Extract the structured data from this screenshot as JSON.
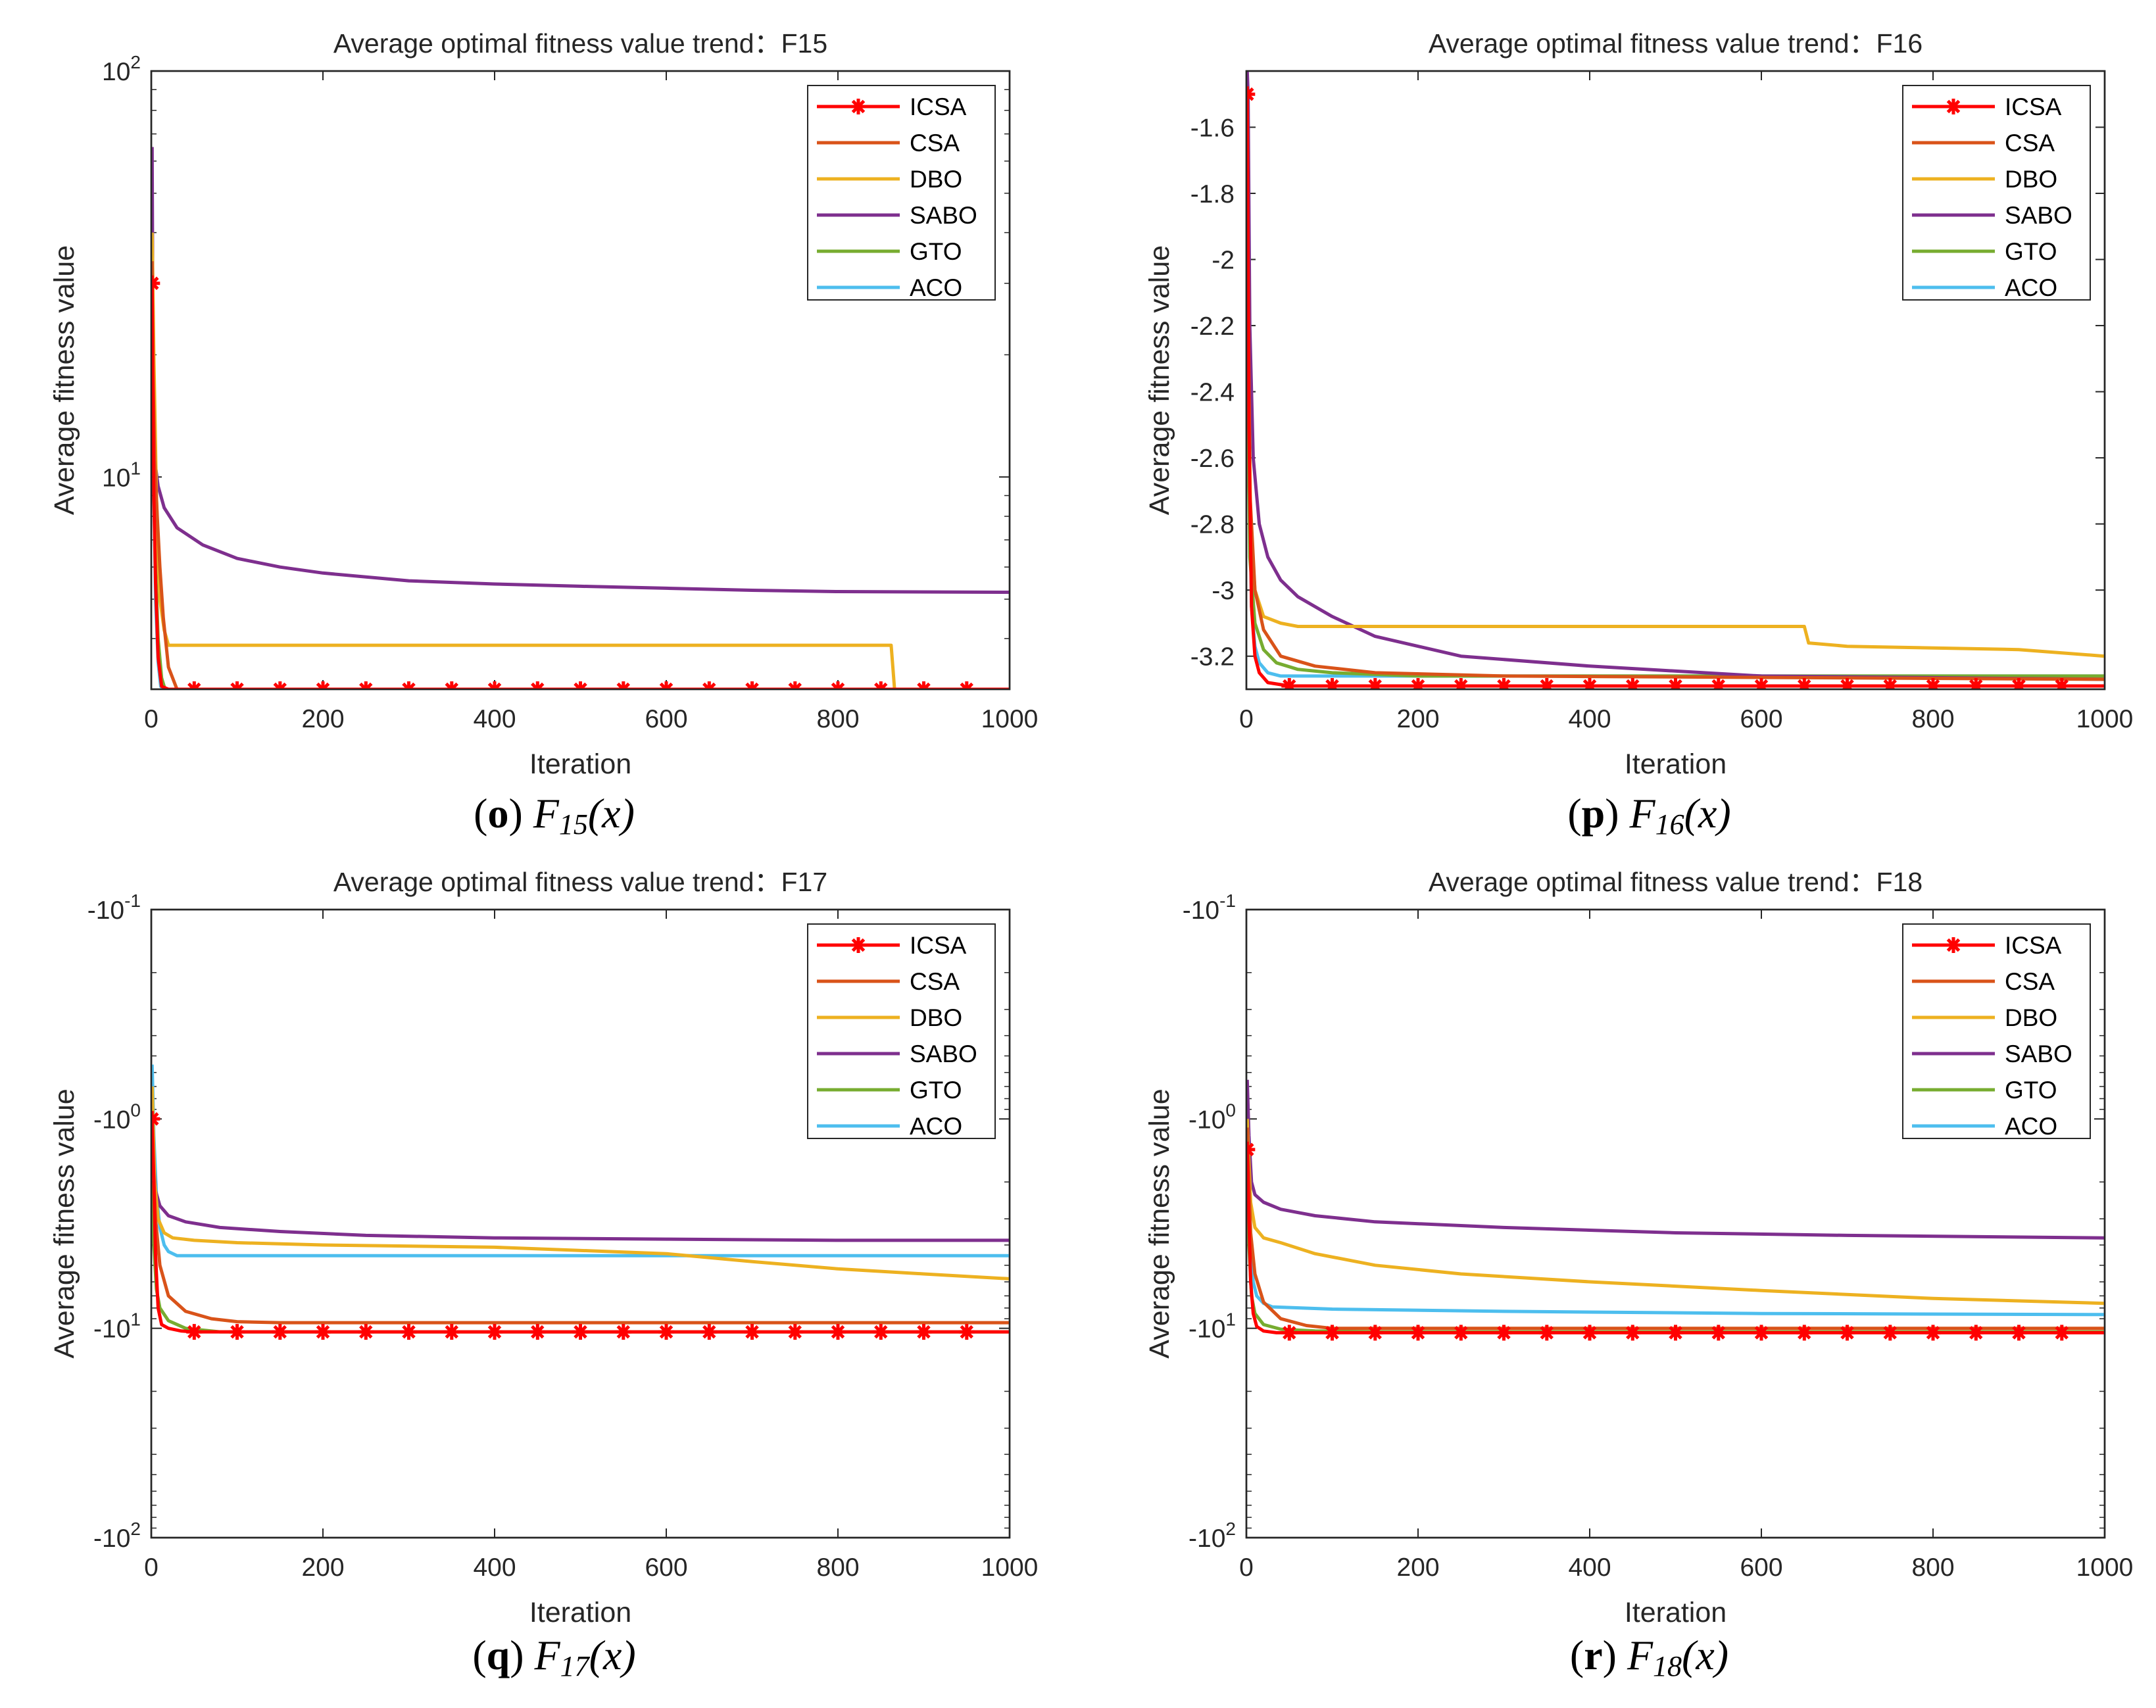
{
  "colors": {
    "ICSA": "#ff0000",
    "CSA": "#d95319",
    "DBO": "#edb120",
    "SABO": "#7e2f8e",
    "GTO": "#77ac30",
    "ACO": "#4dbeee",
    "axis": "#262626",
    "marker": "#ff0000"
  },
  "chart_data": [
    {
      "type": "line",
      "title": "Average optimal fitness value trend：F15",
      "xlabel": "Iteration",
      "ylabel": "Average fitness value",
      "caption": {
        "open": "(",
        "letter": "o",
        "close": ")",
        "func": "F",
        "sub": "15",
        "arg": "(x)"
      },
      "xlim": [
        0,
        1000
      ],
      "yscale": "log",
      "ylim": [
        3,
        100
      ],
      "xticks": [
        0,
        200,
        400,
        600,
        800,
        1000
      ],
      "xtick_labels": [
        "0",
        "200",
        "400",
        "600",
        "800",
        "1000"
      ],
      "yticks": [
        10,
        100
      ],
      "ytick_labels": [
        {
          "base": "10",
          "exp": "1"
        },
        {
          "base": "10",
          "exp": "2"
        }
      ],
      "legend": {
        "position": "top-right",
        "entries": [
          "ICSA",
          "CSA",
          "DBO",
          "SABO",
          "GTO",
          "ACO"
        ]
      },
      "series": [
        {
          "name": "ICSA",
          "marker": "*",
          "x": [
            1,
            2,
            3,
            5,
            8,
            12,
            20,
            50,
            100,
            1000
          ],
          "y": [
            30,
            16,
            9,
            5.5,
            3.6,
            3.05,
            3.0,
            3.0,
            3.0,
            3.0
          ]
        },
        {
          "name": "CSA",
          "x": [
            1,
            2,
            4,
            7,
            10,
            14,
            20,
            30,
            1000
          ],
          "y": [
            34,
            18,
            11,
            8,
            6,
            4.5,
            3.4,
            3.0,
            3.0
          ]
        },
        {
          "name": "DBO",
          "x": [
            1,
            3,
            6,
            10,
            15,
            20,
            862,
            866,
            1000
          ],
          "y": [
            40,
            20,
            9,
            5,
            4.2,
            3.85,
            3.85,
            3.0,
            3.0
          ]
        },
        {
          "name": "SABO",
          "x": [
            1,
            2,
            4,
            8,
            15,
            30,
            60,
            100,
            150,
            200,
            300,
            400,
            500,
            600,
            700,
            800,
            1000
          ],
          "y": [
            65,
            20,
            11,
            9.5,
            8.4,
            7.5,
            6.8,
            6.3,
            6.0,
            5.8,
            5.55,
            5.45,
            5.38,
            5.32,
            5.26,
            5.22,
            5.2
          ]
        },
        {
          "name": "GTO",
          "x": [
            1,
            3,
            5,
            8,
            12,
            16,
            1000
          ],
          "y": [
            36,
            12,
            6,
            4,
            3.2,
            3.0,
            3.0
          ]
        },
        {
          "name": "ACO",
          "x": [
            1,
            3,
            5,
            8,
            11,
            15,
            1000
          ],
          "y": [
            30,
            10,
            5,
            3.5,
            3.05,
            3.0,
            3.0
          ]
        }
      ]
    },
    {
      "type": "line",
      "title": "Average optimal fitness value trend：F16",
      "xlabel": "Iteration",
      "ylabel": "Average fitness value",
      "caption": {
        "open": "(",
        "letter": "p",
        "close": ")",
        "func": "F",
        "sub": "16",
        "arg": "(x)"
      },
      "xlim": [
        0,
        1000
      ],
      "yscale": "linear",
      "ylim": [
        -3.3,
        -1.43
      ],
      "xticks": [
        0,
        200,
        400,
        600,
        800,
        1000
      ],
      "xtick_labels": [
        "0",
        "200",
        "400",
        "600",
        "800",
        "1000"
      ],
      "yticks": [
        -3.2,
        -3,
        -2.8,
        -2.6,
        -2.4,
        -2.2,
        -2,
        -1.8,
        -1.6
      ],
      "ytick_labels": [
        "-3.2",
        "-3",
        "-2.8",
        "-2.6",
        "-2.4",
        "-2.2",
        "-2",
        "-1.8",
        "-1.6"
      ],
      "legend": {
        "position": "top-right",
        "entries": [
          "ICSA",
          "CSA",
          "DBO",
          "SABO",
          "GTO",
          "ACO"
        ]
      },
      "series": [
        {
          "name": "ICSA",
          "marker": "*",
          "x": [
            1,
            3,
            6,
            10,
            15,
            25,
            50,
            100,
            1000
          ],
          "y": [
            -1.5,
            -2.5,
            -3.05,
            -3.2,
            -3.25,
            -3.28,
            -3.29,
            -3.29,
            -3.29
          ]
        },
        {
          "name": "CSA",
          "x": [
            1,
            4,
            10,
            20,
            40,
            80,
            150,
            300,
            1000
          ],
          "y": [
            -1.7,
            -2.7,
            -3.0,
            -3.12,
            -3.2,
            -3.23,
            -3.25,
            -3.26,
            -3.27
          ]
        },
        {
          "name": "DBO",
          "x": [
            1,
            5,
            10,
            20,
            40,
            60,
            100,
            650,
            655,
            700,
            900,
            1000
          ],
          "y": [
            -2.0,
            -2.8,
            -3.0,
            -3.08,
            -3.1,
            -3.11,
            -3.11,
            -3.11,
            -3.16,
            -3.17,
            -3.18,
            -3.2
          ]
        },
        {
          "name": "SABO",
          "x": [
            1,
            2,
            4,
            8,
            15,
            25,
            40,
            60,
            100,
            150,
            250,
            400,
            600,
            1000
          ],
          "y": [
            -1.43,
            -1.5,
            -2.2,
            -2.6,
            -2.8,
            -2.9,
            -2.97,
            -3.02,
            -3.08,
            -3.14,
            -3.2,
            -3.23,
            -3.26,
            -3.27
          ]
        },
        {
          "name": "GTO",
          "x": [
            1,
            4,
            10,
            20,
            35,
            60,
            100,
            200,
            1000
          ],
          "y": [
            -2.2,
            -2.9,
            -3.1,
            -3.18,
            -3.22,
            -3.24,
            -3.25,
            -3.26,
            -3.26
          ]
        },
        {
          "name": "ACO",
          "x": [
            1,
            3,
            6,
            10,
            15,
            25,
            40,
            1000
          ],
          "y": [
            -1.6,
            -2.6,
            -3.05,
            -3.17,
            -3.22,
            -3.25,
            -3.26,
            -3.26
          ]
        }
      ]
    },
    {
      "type": "line",
      "title": "Average optimal fitness value trend：F17",
      "xlabel": "Iteration",
      "ylabel": "Average fitness value",
      "caption": {
        "open": "(",
        "letter": "q",
        "close": ")",
        "func": "F",
        "sub": "17",
        "arg": "(x)"
      },
      "xlim": [
        0,
        1000
      ],
      "yscale": "log-negative",
      "ylim": [
        -100,
        -0.1
      ],
      "xticks": [
        0,
        200,
        400,
        600,
        800,
        1000
      ],
      "xtick_labels": [
        "0",
        "200",
        "400",
        "600",
        "800",
        "1000"
      ],
      "yticks": [
        -0.1,
        -1,
        -10,
        -100
      ],
      "ytick_labels": [
        {
          "base": "-10",
          "exp": "-1"
        },
        {
          "base": "-10",
          "exp": "0"
        },
        {
          "base": "-10",
          "exp": "1"
        },
        {
          "base": "-10",
          "exp": "2"
        }
      ],
      "legend": {
        "position": "top-right",
        "entries": [
          "ICSA",
          "CSA",
          "DBO",
          "SABO",
          "GTO",
          "ACO"
        ]
      },
      "series": [
        {
          "name": "ICSA",
          "marker": "*",
          "x": [
            1,
            3,
            5,
            8,
            12,
            20,
            35,
            50,
            1000
          ],
          "y": [
            -1.0,
            -2.0,
            -4.5,
            -8.0,
            -9.6,
            -10.0,
            -10.3,
            -10.4,
            -10.4
          ]
        },
        {
          "name": "CSA",
          "x": [
            1,
            5,
            10,
            20,
            40,
            70,
            100,
            150,
            1000
          ],
          "y": [
            -1.2,
            -3.0,
            -5.0,
            -7.0,
            -8.3,
            -9.0,
            -9.3,
            -9.4,
            -9.4
          ]
        },
        {
          "name": "DBO",
          "x": [
            1,
            4,
            8,
            15,
            25,
            50,
            100,
            200,
            400,
            600,
            700,
            800,
            900,
            1000
          ],
          "y": [
            -0.7,
            -2.0,
            -3.0,
            -3.5,
            -3.7,
            -3.8,
            -3.9,
            -4.0,
            -4.1,
            -4.4,
            -4.8,
            -5.2,
            -5.5,
            -5.8
          ]
        },
        {
          "name": "SABO",
          "x": [
            1,
            5,
            10,
            20,
            40,
            80,
            150,
            250,
            400,
            600,
            800,
            1000
          ],
          "y": [
            -1.2,
            -2.2,
            -2.6,
            -2.9,
            -3.1,
            -3.3,
            -3.45,
            -3.6,
            -3.7,
            -3.75,
            -3.8,
            -3.8
          ]
        },
        {
          "name": "GTO",
          "x": [
            1,
            3,
            6,
            10,
            20,
            40,
            80,
            1000
          ],
          "y": [
            -2.0,
            -4.0,
            -6.5,
            -8.0,
            -9.2,
            -10.0,
            -10.4,
            -10.4
          ]
        },
        {
          "name": "ACO",
          "x": [
            1,
            3,
            6,
            10,
            15,
            20,
            30,
            1000
          ],
          "y": [
            -0.55,
            -1.2,
            -2.3,
            -3.3,
            -4.0,
            -4.3,
            -4.5,
            -4.5
          ]
        }
      ]
    },
    {
      "type": "line",
      "title": "Average optimal fitness value trend：F18",
      "xlabel": "Iteration",
      "ylabel": "Average fitness value",
      "caption": {
        "open": "(",
        "letter": "r",
        "close": ")",
        "func": "F",
        "sub": "18",
        "arg": "(x)"
      },
      "xlim": [
        0,
        1000
      ],
      "yscale": "log-negative",
      "ylim": [
        -100,
        -0.1
      ],
      "xticks": [
        0,
        200,
        400,
        600,
        800,
        1000
      ],
      "xtick_labels": [
        "0",
        "200",
        "400",
        "600",
        "800",
        "1000"
      ],
      "yticks": [
        -0.1,
        -1,
        -10,
        -100
      ],
      "ytick_labels": [
        {
          "base": "-10",
          "exp": "-1"
        },
        {
          "base": "-10",
          "exp": "0"
        },
        {
          "base": "-10",
          "exp": "1"
        },
        {
          "base": "-10",
          "exp": "2"
        }
      ],
      "legend": {
        "position": "top-right",
        "entries": [
          "ICSA",
          "CSA",
          "DBO",
          "SABO",
          "GTO",
          "ACO"
        ]
      },
      "series": [
        {
          "name": "ICSA",
          "marker": "*",
          "x": [
            1,
            3,
            5,
            8,
            12,
            20,
            35,
            50,
            1000
          ],
          "y": [
            -1.4,
            -3.0,
            -6.0,
            -8.5,
            -9.8,
            -10.3,
            -10.5,
            -10.5,
            -10.5
          ]
        },
        {
          "name": "CSA",
          "x": [
            1,
            5,
            10,
            20,
            40,
            70,
            100,
            1000
          ],
          "y": [
            -1.1,
            -3.5,
            -5.5,
            -7.5,
            -9.0,
            -9.7,
            -10.0,
            -10.0
          ]
        },
        {
          "name": "DBO",
          "x": [
            1,
            5,
            10,
            20,
            40,
            80,
            150,
            250,
            400,
            600,
            800,
            1000
          ],
          "y": [
            -1.0,
            -2.5,
            -3.3,
            -3.7,
            -3.9,
            -4.4,
            -5.0,
            -5.5,
            -6.0,
            -6.6,
            -7.2,
            -7.6
          ]
        },
        {
          "name": "SABO",
          "x": [
            1,
            3,
            6,
            10,
            20,
            40,
            80,
            150,
            300,
            500,
            700,
            1000
          ],
          "y": [
            -0.65,
            -1.2,
            -2.0,
            -2.3,
            -2.5,
            -2.7,
            -2.9,
            -3.1,
            -3.3,
            -3.5,
            -3.6,
            -3.7
          ]
        },
        {
          "name": "GTO",
          "x": [
            1,
            3,
            6,
            10,
            20,
            40,
            80,
            150,
            1000
          ],
          "y": [
            -1.7,
            -4.0,
            -7.0,
            -8.5,
            -9.6,
            -10.1,
            -10.3,
            -10.4,
            -10.4
          ]
        },
        {
          "name": "ACO",
          "x": [
            1,
            3,
            5,
            8,
            12,
            20,
            30,
            100,
            300,
            600,
            1000
          ],
          "y": [
            -0.8,
            -2.0,
            -4.0,
            -6.0,
            -7.0,
            -7.6,
            -7.9,
            -8.1,
            -8.3,
            -8.5,
            -8.6
          ]
        }
      ]
    }
  ]
}
